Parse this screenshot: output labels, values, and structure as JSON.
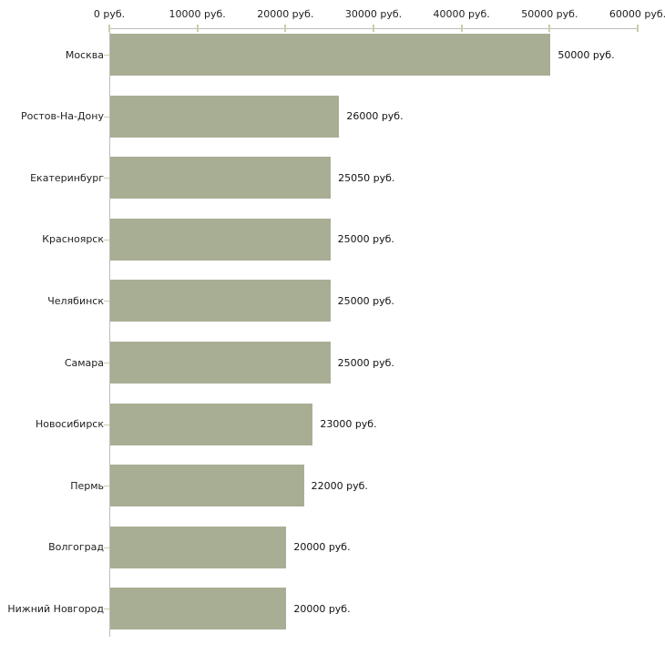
{
  "chart_data": {
    "type": "bar",
    "orientation": "horizontal",
    "title": "",
    "xlabel": "",
    "ylabel": "",
    "unit": "руб.",
    "categories": [
      "Москва",
      "Ростов-На-Дону",
      "Екатеринбург",
      "Красноярск",
      "Челябинск",
      "Самара",
      "Новосибирск",
      "Пермь",
      "Волгоград",
      "Нижний Новгород"
    ],
    "values": [
      50000,
      26000,
      25050,
      25000,
      25000,
      25000,
      23000,
      22000,
      20000,
      20000
    ],
    "value_labels": [
      "50000 руб.",
      "26000 руб.",
      "25050 руб.",
      "25000 руб.",
      "25000 руб.",
      "25000 руб.",
      "23000 руб.",
      "22000 руб.",
      "20000 руб.",
      "20000 руб."
    ],
    "x_axis": {
      "position": "top",
      "min": 0,
      "max": 60000,
      "ticks": [
        0,
        10000,
        20000,
        30000,
        40000,
        50000,
        60000
      ],
      "tick_labels": [
        "0 руб.",
        "10000 руб.",
        "20000 руб.",
        "30000 руб.",
        "40000 руб.",
        "50000 руб.",
        "60000 руб."
      ]
    },
    "grid": false,
    "legend": false,
    "colors": {
      "bar": "#a8ae94",
      "axis_line": "#bdbdbd",
      "tick": "#c9cfa4",
      "text": "#1f1f1f",
      "background": "#ffffff"
    }
  }
}
